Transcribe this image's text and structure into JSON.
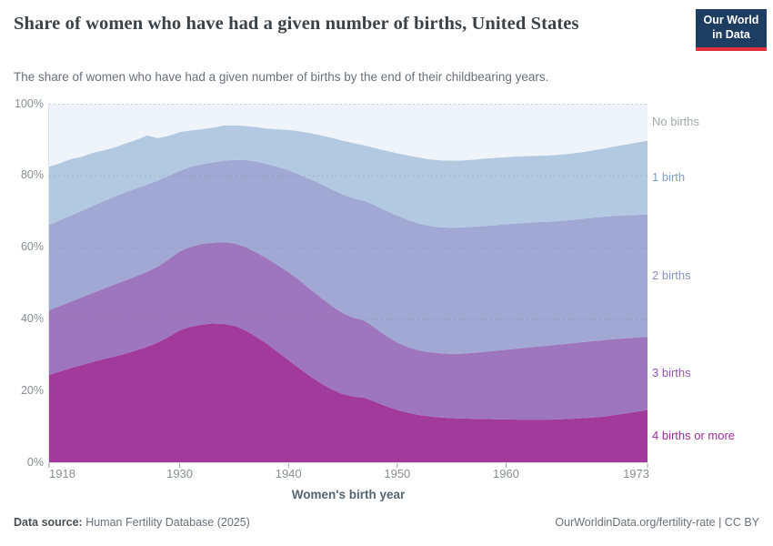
{
  "header": {
    "title": "Share of women who have had a given number of births, United States",
    "subtitle": "The share of women who have had a given number of births by the end of their childbearing years.",
    "logo_line1": "Our World",
    "logo_line2": "in Data",
    "logo_bg": "#1d3d63",
    "logo_accent": "#e0303e"
  },
  "chart_data": {
    "type": "area",
    "stacked": true,
    "title": "Share of women who have had a given number of births, United States",
    "xlabel": "Women's birth year",
    "ylabel": "",
    "xlim": [
      1918,
      1973
    ],
    "ylim": [
      0,
      100
    ],
    "grid": "dashed-horizontal",
    "legend_position": "right",
    "xticks": [
      1918,
      1930,
      1940,
      1950,
      1960,
      1973
    ],
    "xtick_labels": [
      "1918",
      "1930",
      "1940",
      "1950",
      "1960",
      "1973"
    ],
    "yticks": [
      0,
      20,
      40,
      60,
      80,
      100
    ],
    "ytick_labels": [
      "0%",
      "20%",
      "40%",
      "60%",
      "80%",
      "100%"
    ],
    "x": [
      1918,
      1919,
      1920,
      1921,
      1922,
      1923,
      1924,
      1925,
      1926,
      1927,
      1928,
      1929,
      1930,
      1931,
      1932,
      1933,
      1934,
      1935,
      1936,
      1937,
      1938,
      1939,
      1940,
      1941,
      1942,
      1943,
      1944,
      1945,
      1946,
      1947,
      1948,
      1949,
      1950,
      1951,
      1952,
      1953,
      1954,
      1955,
      1956,
      1957,
      1958,
      1959,
      1960,
      1961,
      1962,
      1963,
      1964,
      1965,
      1966,
      1967,
      1968,
      1969,
      1970,
      1971,
      1972,
      1973
    ],
    "series": [
      {
        "name": "4 births or more",
        "color": "#a23a9c",
        "label_color": "#a12b9e",
        "values": [
          24.4,
          25.3,
          26.3,
          27.1,
          28.0,
          28.8,
          29.5,
          30.3,
          31.2,
          32.2,
          33.4,
          35.0,
          36.8,
          37.8,
          38.4,
          38.7,
          38.6,
          38.1,
          36.9,
          35.1,
          33.1,
          30.8,
          28.5,
          26.2,
          24.0,
          22.0,
          20.3,
          19.0,
          18.3,
          18.0,
          16.8,
          15.6,
          14.6,
          13.8,
          13.2,
          12.8,
          12.5,
          12.3,
          12.2,
          12.1,
          12.1,
          12.0,
          12.0,
          11.9,
          11.9,
          11.9,
          11.9,
          12.0,
          12.1,
          12.3,
          12.5,
          12.8,
          13.2,
          13.6,
          14.1,
          14.6
        ]
      },
      {
        "name": "3 births",
        "color": "#9d76bd",
        "label_color": "#9257b2",
        "values": [
          18.0,
          18.3,
          18.5,
          18.9,
          19.2,
          19.6,
          20.1,
          20.4,
          20.7,
          20.9,
          21.2,
          21.6,
          22.0,
          22.3,
          22.5,
          22.5,
          22.8,
          23.0,
          23.2,
          23.5,
          23.8,
          24.2,
          24.5,
          24.6,
          24.3,
          23.9,
          23.3,
          22.6,
          22.0,
          21.5,
          20.6,
          19.6,
          18.8,
          18.3,
          18.0,
          17.9,
          17.9,
          17.9,
          18.1,
          18.4,
          18.7,
          19.1,
          19.4,
          19.8,
          20.1,
          20.4,
          20.7,
          20.9,
          21.1,
          21.2,
          21.3,
          21.3,
          21.2,
          21.0,
          20.7,
          20.4
        ]
      },
      {
        "name": "2 births",
        "color": "#a0a8d3",
        "label_color": "#8a91c5",
        "values": [
          23.8,
          23.9,
          24.0,
          24.1,
          24.3,
          24.4,
          24.5,
          24.6,
          24.5,
          24.3,
          24.0,
          23.3,
          22.5,
          22.3,
          22.2,
          22.4,
          22.7,
          23.2,
          24.2,
          25.3,
          26.3,
          27.4,
          28.5,
          29.4,
          30.7,
          31.7,
          32.5,
          33.1,
          33.3,
          33.4,
          34.2,
          34.9,
          35.4,
          35.5,
          35.4,
          35.2,
          35.1,
          35.2,
          35.2,
          35.2,
          35.1,
          35.0,
          35.0,
          34.9,
          34.8,
          34.7,
          34.5,
          34.4,
          34.4,
          34.4,
          34.4,
          34.4,
          34.3,
          34.3,
          34.2,
          34.1
        ]
      },
      {
        "name": "1 birth",
        "color": "#b3c9e1",
        "label_color": "#7fa0c6",
        "values": [
          16.3,
          15.9,
          15.8,
          15.1,
          14.8,
          14.2,
          13.7,
          13.6,
          13.5,
          13.8,
          11.8,
          11.2,
          10.8,
          10.2,
          9.8,
          9.7,
          9.8,
          9.7,
          9.5,
          9.6,
          9.9,
          10.5,
          11.2,
          12.1,
          12.8,
          13.6,
          14.4,
          15.0,
          15.4,
          15.5,
          16.0,
          16.8,
          17.4,
          18.0,
          18.4,
          18.6,
          18.7,
          18.7,
          18.7,
          18.7,
          18.8,
          18.8,
          18.7,
          18.7,
          18.6,
          18.5,
          18.5,
          18.5,
          18.5,
          18.6,
          18.8,
          19.0,
          19.4,
          19.7,
          20.2,
          20.6
        ]
      },
      {
        "name": "No births",
        "color": "#eef4fa",
        "label_color": "#a3a7ab",
        "values": [
          17.5,
          16.6,
          15.4,
          14.8,
          13.7,
          13.0,
          12.2,
          11.1,
          10.1,
          8.8,
          9.6,
          8.9,
          7.9,
          7.4,
          7.1,
          6.7,
          6.1,
          6.0,
          6.2,
          6.5,
          6.9,
          7.1,
          7.3,
          7.7,
          8.2,
          8.8,
          9.5,
          10.3,
          11.0,
          11.6,
          12.4,
          13.1,
          13.8,
          14.4,
          15.0,
          15.5,
          15.8,
          15.9,
          15.8,
          15.6,
          15.3,
          15.1,
          14.9,
          14.7,
          14.6,
          14.5,
          14.4,
          14.2,
          13.9,
          13.5,
          13.0,
          12.5,
          11.9,
          11.4,
          10.8,
          10.3
        ]
      }
    ]
  },
  "footer": {
    "datasource_label": "Data source:",
    "datasource": " Human Fertility Database (2025)",
    "credit": "OurWorldinData.org/fertility-rate | CC BY"
  }
}
